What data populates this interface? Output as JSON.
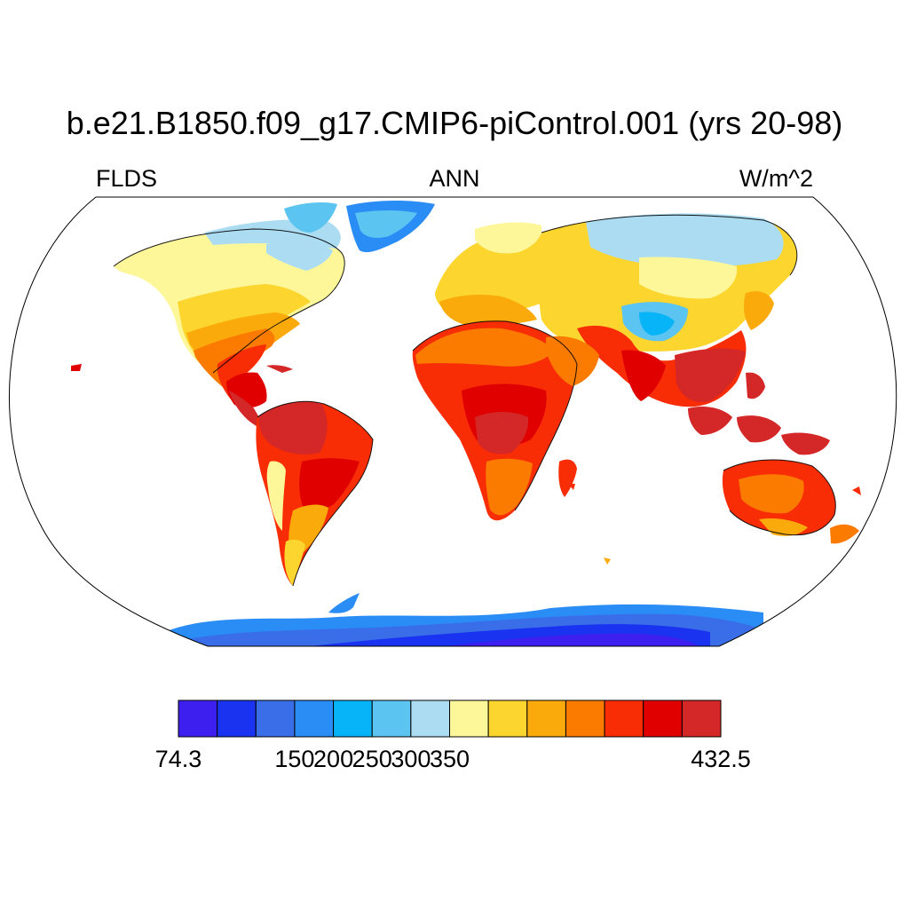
{
  "title": "b.e21.B1850.f09_g17.CMIP6-piControl.001 (yrs 20-98)",
  "left_string": "FLDS",
  "center_string": "ANN",
  "right_string": "W/m^2",
  "colorbar": {
    "colors": [
      "#3d1ff0",
      "#1a33f0",
      "#3a6ee8",
      "#2a8cf5",
      "#08b4f8",
      "#5bc4f0",
      "#acdcf2",
      "#fef79a",
      "#fcd52e",
      "#fbaa0c",
      "#fb7a00",
      "#f82c05",
      "#e00000",
      "#d42828"
    ],
    "labels": [
      {
        "text": "74.3",
        "boundary": 0
      },
      {
        "text": "150",
        "boundary": 3
      },
      {
        "text": "200",
        "boundary": 4
      },
      {
        "text": "250",
        "boundary": 5
      },
      {
        "text": "300",
        "boundary": 6
      },
      {
        "text": "350",
        "boundary": 7
      },
      {
        "text": "432.5",
        "boundary": 14
      }
    ]
  },
  "chart_data": {
    "type": "heatmap",
    "projection": "Robinson",
    "variable": "FLDS",
    "season": "ANN",
    "units": "W/m^2",
    "range": [
      74.3,
      432.5
    ],
    "ocean": "masked (white)"
  }
}
